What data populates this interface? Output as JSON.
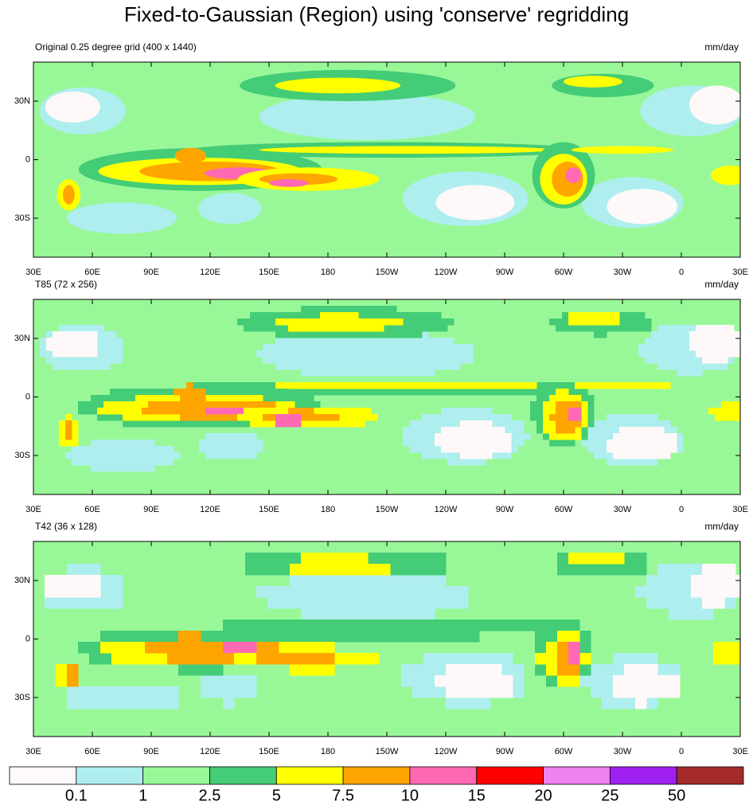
{
  "title": "Fixed-to-Gaussian (Region) using 'conserve' regridding",
  "panels": [
    {
      "label": "Original 0.25 degree grid (400 x 1440)",
      "units": "mm/day"
    },
    {
      "label": "T85 (72 x 256)",
      "units": "mm/day"
    },
    {
      "label": "T42 (36 x 128)",
      "units": "mm/day"
    }
  ],
  "x_tick_labels": [
    "30E",
    "60E",
    "90E",
    "120E",
    "150E",
    "180",
    "150W",
    "120W",
    "90W",
    "60W",
    "30W",
    "0",
    "30E"
  ],
  "y_tick_labels": [
    "30N",
    "0",
    "30S"
  ],
  "colorbar": {
    "colors": [
      "#fff8f8",
      "#aeeeee",
      "#98f898",
      "#44cc77",
      "#ffff00",
      "#ffa500",
      "#ff69b4",
      "#ff0000",
      "#ee82ee",
      "#a020f0",
      "#a52a2a"
    ],
    "labels": [
      "0.1",
      "1",
      "2.5",
      "5",
      "7.5",
      "10",
      "15",
      "20",
      "25",
      "50"
    ]
  }
}
